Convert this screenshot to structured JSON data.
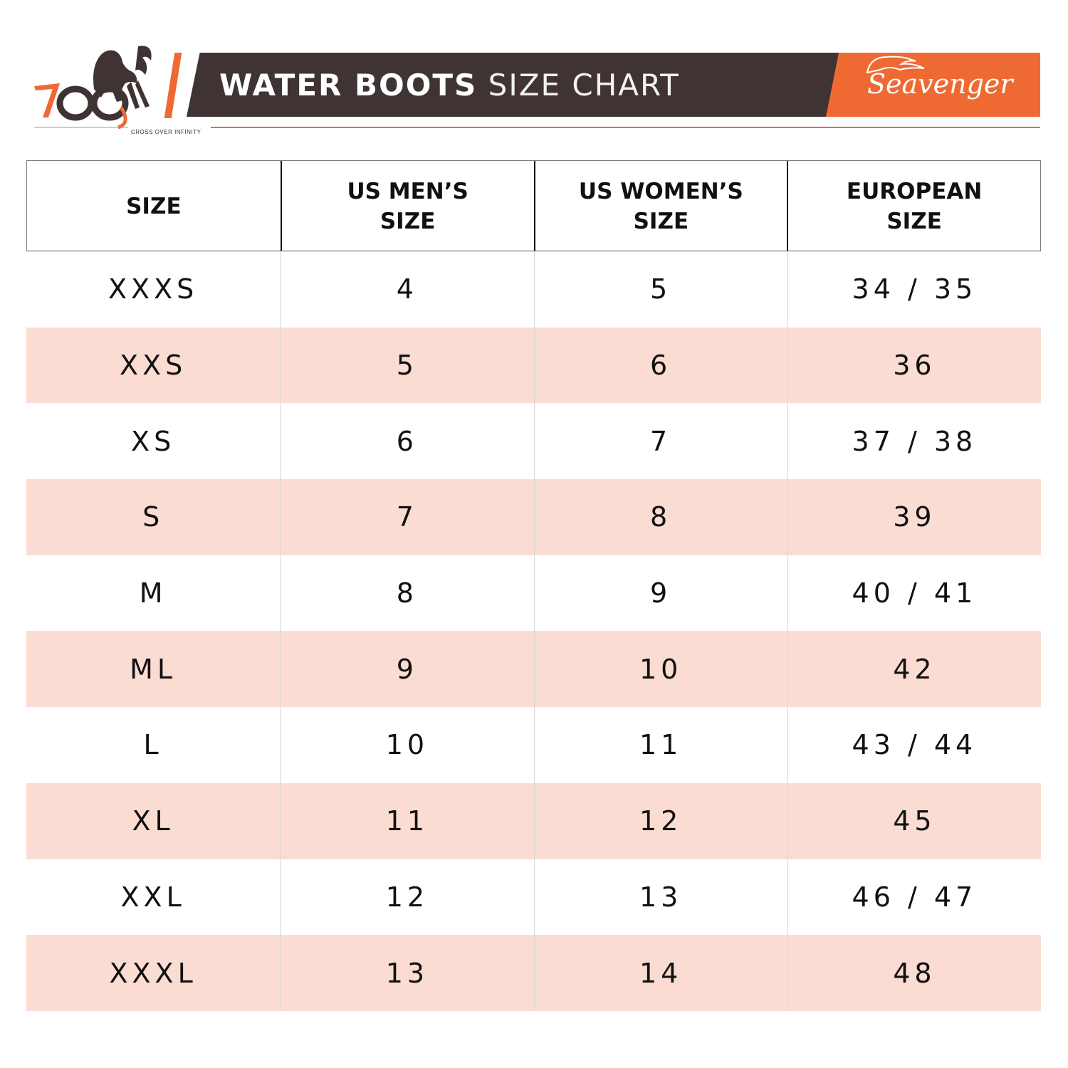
{
  "header": {
    "logo_tagline": "CROSS OVER INFINITY",
    "title_bold": "WATER BOOTS",
    "title_light": "SIZE CHART",
    "brand": "Seavenger"
  },
  "colors": {
    "accent": "#ee6a32",
    "banner_dark": "#3f3433",
    "row_shade": "#fbdcd3"
  },
  "table": {
    "headers": [
      "SIZE",
      "US MEN’S\nSIZE",
      "US WOMEN’S\nSIZE",
      "EUROPEAN\nSIZE"
    ],
    "rows": [
      [
        "XXXS",
        "4",
        "5",
        "34 / 35"
      ],
      [
        "XXS",
        "5",
        "6",
        "36"
      ],
      [
        "XS",
        "6",
        "7",
        "37 / 38"
      ],
      [
        "S",
        "7",
        "8",
        "39"
      ],
      [
        "M",
        "8",
        "9",
        "40 / 41"
      ],
      [
        "ML",
        "9",
        "10",
        "42"
      ],
      [
        "L",
        "10",
        "11",
        "43 / 44"
      ],
      [
        "XL",
        "11",
        "12",
        "45"
      ],
      [
        "XXL",
        "12",
        "13",
        "46 / 47"
      ],
      [
        "XXXL",
        "13",
        "14",
        "48"
      ]
    ]
  }
}
